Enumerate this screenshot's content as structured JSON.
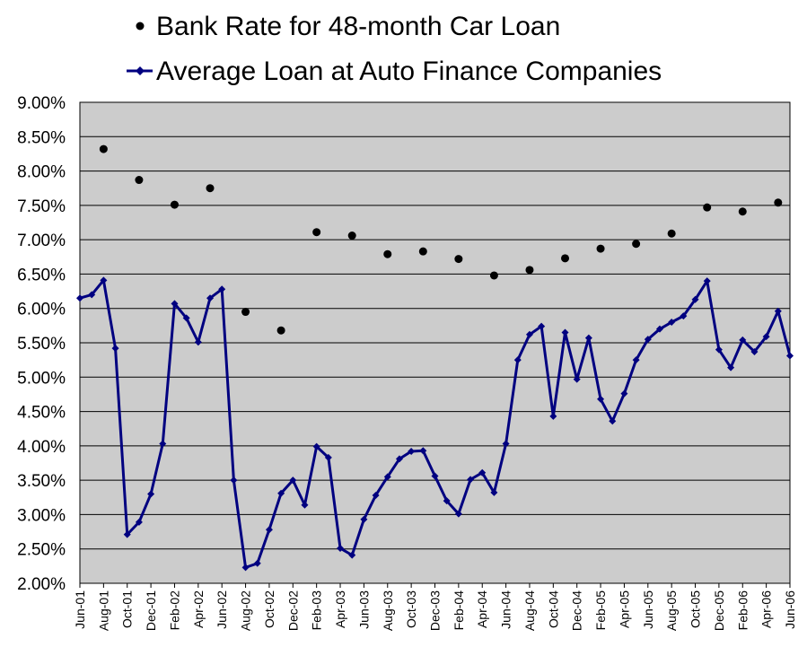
{
  "chart_data": {
    "type": "line",
    "title": "",
    "xlabel": "",
    "ylabel": "",
    "ylim": [
      0.02,
      0.09
    ],
    "y_tick_labels": [
      "2.00%",
      "2.50%",
      "3.00%",
      "3.50%",
      "4.00%",
      "4.50%",
      "5.00%",
      "5.50%",
      "6.00%",
      "6.50%",
      "7.00%",
      "7.50%",
      "8.00%",
      "8.50%",
      "9.00%"
    ],
    "x_tick_labels": [
      "Jun-01",
      "Aug-01",
      "Oct-01",
      "Dec-01",
      "Feb-02",
      "Apr-02",
      "Jun-02",
      "Aug-02",
      "Oct-02",
      "Dec-02",
      "Feb-03",
      "Apr-03",
      "Jun-03",
      "Aug-03",
      "Oct-03",
      "Dec-03",
      "Feb-04",
      "Apr-04",
      "Jun-04",
      "Aug-04",
      "Oct-04",
      "Dec-04",
      "Feb-05",
      "Apr-05",
      "Jun-05",
      "Aug-05",
      "Oct-05",
      "Dec-05",
      "Feb-06",
      "Apr-06",
      "Jun-06"
    ],
    "x": [
      "Jun-01",
      "Jul-01",
      "Aug-01",
      "Sep-01",
      "Oct-01",
      "Nov-01",
      "Dec-01",
      "Jan-02",
      "Feb-02",
      "Mar-02",
      "Apr-02",
      "May-02",
      "Jun-02",
      "Jul-02",
      "Aug-02",
      "Sep-02",
      "Oct-02",
      "Nov-02",
      "Dec-02",
      "Jan-03",
      "Feb-03",
      "Mar-03",
      "Apr-03",
      "May-03",
      "Jun-03",
      "Jul-03",
      "Aug-03",
      "Sep-03",
      "Oct-03",
      "Nov-03",
      "Dec-03",
      "Jan-04",
      "Feb-04",
      "Mar-04",
      "Apr-04",
      "May-04",
      "Jun-04",
      "Jul-04",
      "Aug-04",
      "Sep-04",
      "Oct-04",
      "Nov-04",
      "Dec-04",
      "Jan-05",
      "Feb-05",
      "Mar-05",
      "Apr-05",
      "May-05",
      "Jun-05",
      "Jul-05",
      "Aug-05",
      "Sep-05",
      "Oct-05",
      "Nov-05",
      "Dec-05",
      "Jan-06",
      "Feb-06",
      "Mar-06",
      "Apr-06",
      "May-06",
      "Jun-06"
    ],
    "legend": {
      "placement": "top"
    },
    "grid": true,
    "plot_background": "#cccccc",
    "series": [
      {
        "name": "Bank Rate for 48-month Car Loan",
        "kind": "scatter",
        "color": "#000000",
        "points": [
          {
            "x": "Aug-01",
            "y": 0.0832
          },
          {
            "x": "Nov-01",
            "y": 0.0787
          },
          {
            "x": "Feb-02",
            "y": 0.0751
          },
          {
            "x": "May-02",
            "y": 0.0775
          },
          {
            "x": "Aug-02",
            "y": 0.0595
          },
          {
            "x": "Nov-02",
            "y": 0.0568
          },
          {
            "x": "Feb-03",
            "y": 0.0711
          },
          {
            "x": "May-03",
            "y": 0.0706
          },
          {
            "x": "Aug-03",
            "y": 0.0679
          },
          {
            "x": "Nov-03",
            "y": 0.0683
          },
          {
            "x": "Feb-04",
            "y": 0.0672
          },
          {
            "x": "May-04",
            "y": 0.0648
          },
          {
            "x": "Aug-04",
            "y": 0.0656
          },
          {
            "x": "Nov-04",
            "y": 0.0673
          },
          {
            "x": "Feb-05",
            "y": 0.0687
          },
          {
            "x": "May-05",
            "y": 0.0694
          },
          {
            "x": "Aug-05",
            "y": 0.0709
          },
          {
            "x": "Nov-05",
            "y": 0.0747
          },
          {
            "x": "Feb-06",
            "y": 0.0741
          },
          {
            "x": "May-06",
            "y": 0.0754
          }
        ]
      },
      {
        "name": "Average Loan at Auto Finance Companies",
        "kind": "line",
        "color": "#000080",
        "values": [
          0.0615,
          0.062,
          0.0641,
          0.0542,
          0.0271,
          0.0289,
          0.033,
          0.0403,
          0.0607,
          0.0586,
          0.0551,
          0.0615,
          0.0628,
          0.035,
          0.0223,
          0.0229,
          0.0278,
          0.0331,
          0.035,
          0.0314,
          0.0399,
          0.0383,
          0.0251,
          0.0241,
          0.0293,
          0.0328,
          0.0355,
          0.0381,
          0.0392,
          0.0393,
          0.0356,
          0.032,
          0.0301,
          0.0351,
          0.0361,
          0.0332,
          0.0403,
          0.0525,
          0.0562,
          0.0574,
          0.0443,
          0.0565,
          0.0497,
          0.0557,
          0.0468,
          0.0436,
          0.0476,
          0.0525,
          0.0555,
          0.057,
          0.058,
          0.0589,
          0.0613,
          0.064,
          0.054,
          0.0514,
          0.0554,
          0.0537,
          0.0559,
          0.0596,
          0.0531
        ]
      }
    ]
  }
}
